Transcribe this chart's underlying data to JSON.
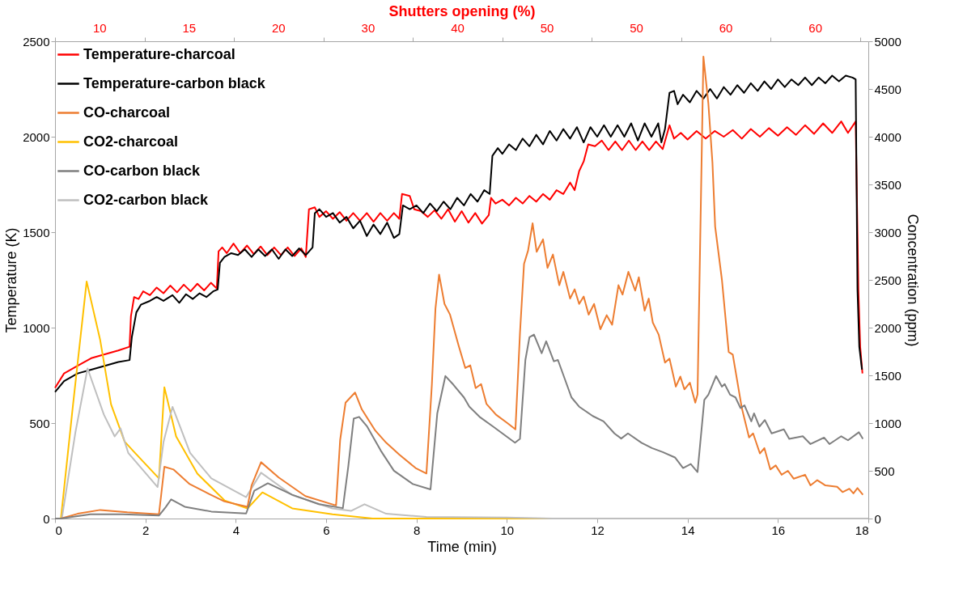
{
  "chart_data": {
    "type": "line",
    "xlabel": "Time (min)",
    "ylabel": "Temperature (K)",
    "y2label": "Concentration (ppm)",
    "x2label": "Shutters opening (%)",
    "xlim": [
      0,
      18
    ],
    "xticks": [
      0,
      2,
      4,
      6,
      8,
      10,
      12,
      14,
      16,
      18
    ],
    "ylim": [
      0,
      2500
    ],
    "yticks": [
      0,
      500,
      1000,
      1500,
      2000,
      2500
    ],
    "y2lim": [
      0,
      5000
    ],
    "y2ticks": [
      0,
      500,
      1000,
      1500,
      2000,
      2500,
      3000,
      3500,
      4000,
      4500,
      5000
    ],
    "annotations": [
      "10",
      "15",
      "20",
      "30",
      "40",
      "50",
      "50",
      "60",
      "60"
    ],
    "legend": "top left",
    "line_style": "solid",
    "series": [
      {
        "name": "Temperature-charcoal",
        "color": "#ff0000",
        "x": [
          0,
          0.2,
          0.5,
          0.8,
          1.1,
          1.4,
          1.65,
          1.68,
          1.75,
          1.85,
          1.95,
          2.1,
          2.25,
          2.4,
          2.55,
          2.7,
          2.85,
          3.0,
          3.15,
          3.3,
          3.45,
          3.58,
          3.62,
          3.7,
          3.8,
          3.95,
          4.1,
          4.25,
          4.4,
          4.55,
          4.7,
          4.85,
          5.0,
          5.15,
          5.3,
          5.45,
          5.55,
          5.62,
          5.75,
          5.85,
          6.0,
          6.15,
          6.3,
          6.45,
          6.6,
          6.75,
          6.9,
          7.05,
          7.2,
          7.35,
          7.5,
          7.62,
          7.68,
          7.85,
          7.95,
          8.1,
          8.25,
          8.4,
          8.55,
          8.7,
          8.85,
          9.0,
          9.15,
          9.3,
          9.45,
          9.6,
          9.65,
          9.75,
          9.9,
          10.05,
          10.2,
          10.35,
          10.5,
          10.65,
          10.8,
          10.95,
          11.1,
          11.25,
          11.4,
          11.5,
          11.6,
          11.7,
          11.8,
          11.95,
          12.1,
          12.25,
          12.4,
          12.55,
          12.7,
          12.85,
          13.0,
          13.15,
          13.3,
          13.45,
          13.6,
          13.7,
          13.85,
          14.0,
          14.2,
          14.4,
          14.6,
          14.8,
          15.0,
          15.2,
          15.4,
          15.6,
          15.8,
          16.0,
          16.2,
          16.4,
          16.6,
          16.8,
          17.0,
          17.2,
          17.4,
          17.55,
          17.72,
          17.78,
          17.82,
          17.87
        ],
        "values": [
          684,
          760,
          800,
          840,
          860,
          880,
          900,
          1060,
          1160,
          1150,
          1190,
          1170,
          1210,
          1180,
          1220,
          1185,
          1225,
          1190,
          1230,
          1195,
          1235,
          1205,
          1400,
          1420,
          1390,
          1440,
          1390,
          1430,
          1385,
          1425,
          1380,
          1420,
          1380,
          1420,
          1375,
          1415,
          1370,
          1620,
          1630,
          1580,
          1610,
          1570,
          1605,
          1560,
          1600,
          1560,
          1600,
          1555,
          1600,
          1560,
          1600,
          1570,
          1700,
          1690,
          1620,
          1610,
          1580,
          1615,
          1570,
          1620,
          1555,
          1610,
          1550,
          1600,
          1545,
          1590,
          1680,
          1650,
          1670,
          1640,
          1680,
          1650,
          1690,
          1660,
          1700,
          1670,
          1720,
          1700,
          1760,
          1720,
          1820,
          1870,
          1960,
          1950,
          1980,
          1930,
          1975,
          1930,
          1980,
          1930,
          1975,
          1930,
          1975,
          1935,
          2060,
          1990,
          2020,
          1985,
          2030,
          1990,
          2030,
          2000,
          2035,
          1990,
          2040,
          2000,
          2045,
          2005,
          2050,
          2010,
          2060,
          2015,
          2070,
          2020,
          2080,
          2020,
          2080,
          1200,
          900,
          760
        ]
      },
      {
        "name": "Temperature-carbon black",
        "color": "#000000",
        "x": [
          0,
          0.2,
          0.5,
          0.8,
          1.1,
          1.4,
          1.65,
          1.7,
          1.8,
          1.9,
          2.1,
          2.25,
          2.4,
          2.6,
          2.75,
          2.9,
          3.05,
          3.2,
          3.35,
          3.5,
          3.6,
          3.65,
          3.75,
          3.9,
          4.05,
          4.2,
          4.35,
          4.5,
          4.65,
          4.8,
          4.95,
          5.1,
          5.25,
          5.4,
          5.55,
          5.7,
          5.75,
          5.85,
          6.0,
          6.15,
          6.3,
          6.45,
          6.6,
          6.75,
          6.9,
          7.05,
          7.2,
          7.35,
          7.5,
          7.62,
          7.7,
          7.85,
          8.0,
          8.15,
          8.3,
          8.45,
          8.6,
          8.75,
          8.9,
          9.05,
          9.2,
          9.35,
          9.5,
          9.62,
          9.68,
          9.8,
          9.9,
          10.05,
          10.2,
          10.35,
          10.5,
          10.65,
          10.8,
          10.95,
          11.1,
          11.25,
          11.4,
          11.55,
          11.7,
          11.85,
          12.0,
          12.15,
          12.3,
          12.45,
          12.6,
          12.75,
          12.9,
          13.05,
          13.2,
          13.35,
          13.42,
          13.5,
          13.6,
          13.7,
          13.78,
          13.9,
          14.05,
          14.2,
          14.35,
          14.5,
          14.65,
          14.8,
          14.95,
          15.1,
          15.25,
          15.4,
          15.55,
          15.7,
          15.85,
          16.0,
          16.15,
          16.3,
          16.45,
          16.6,
          16.75,
          16.9,
          17.05,
          17.2,
          17.35,
          17.5,
          17.65,
          17.72,
          17.76,
          17.8,
          17.86
        ],
        "values": [
          663,
          720,
          760,
          780,
          800,
          820,
          830,
          950,
          1080,
          1120,
          1140,
          1160,
          1140,
          1170,
          1130,
          1175,
          1150,
          1180,
          1160,
          1190,
          1200,
          1340,
          1370,
          1390,
          1380,
          1410,
          1370,
          1410,
          1375,
          1410,
          1360,
          1410,
          1375,
          1415,
          1380,
          1420,
          1600,
          1620,
          1580,
          1600,
          1550,
          1580,
          1520,
          1560,
          1480,
          1540,
          1490,
          1550,
          1470,
          1490,
          1640,
          1620,
          1640,
          1600,
          1650,
          1610,
          1660,
          1620,
          1680,
          1640,
          1700,
          1660,
          1720,
          1700,
          1900,
          1940,
          1910,
          1960,
          1930,
          1990,
          1950,
          2010,
          1960,
          2030,
          1980,
          2040,
          1990,
          2050,
          1970,
          2050,
          2000,
          2060,
          2000,
          2060,
          2000,
          2070,
          1980,
          2070,
          2000,
          2070,
          1970,
          2040,
          2230,
          2240,
          2170,
          2220,
          2180,
          2240,
          2200,
          2250,
          2200,
          2260,
          2220,
          2270,
          2230,
          2280,
          2240,
          2290,
          2250,
          2300,
          2260,
          2300,
          2270,
          2310,
          2270,
          2310,
          2280,
          2320,
          2290,
          2320,
          2310,
          2300,
          1200,
          900,
          780
        ]
      },
      {
        "name": "CO-charcoal",
        "color": "#ed7d31",
        "axis": "y2",
        "x": [
          0,
          0.13,
          0.5,
          1.0,
          1.6,
          2.3,
          2.35,
          2.42,
          2.62,
          2.98,
          3.4,
          3.75,
          4.26,
          4.35,
          4.56,
          4.95,
          5.54,
          6.22,
          6.31,
          6.43,
          6.64,
          6.79,
          7.09,
          7.33,
          7.62,
          7.98,
          8.22,
          8.34,
          8.42,
          8.5,
          8.62,
          8.74,
          8.93,
          9.08,
          9.19,
          9.31,
          9.43,
          9.55,
          9.76,
          10.0,
          10.19,
          10.29,
          10.38,
          10.47,
          10.57,
          10.66,
          10.8,
          10.9,
          11.02,
          11.16,
          11.25,
          11.4,
          11.5,
          11.6,
          11.7,
          11.81,
          11.93,
          12.07,
          12.21,
          12.33,
          12.47,
          12.56,
          12.69,
          12.84,
          12.92,
          13.05,
          13.14,
          13.23,
          13.36,
          13.5,
          13.6,
          13.74,
          13.84,
          13.93,
          14.05,
          14.17,
          14.22,
          14.35,
          14.46,
          14.55,
          14.61,
          14.76,
          14.91,
          15.0,
          15.2,
          15.36,
          15.45,
          15.6,
          15.7,
          15.83,
          15.95,
          16.08,
          16.22,
          16.35,
          16.6,
          16.72,
          16.87,
          17.05,
          17.31,
          17.43,
          17.58,
          17.67,
          17.76,
          17.88
        ],
        "values": [
          0,
          0,
          50,
          90,
          65,
          45,
          250,
          543,
          514,
          361,
          260,
          179,
          123,
          347,
          590,
          430,
          235,
          137,
          822,
          1214,
          1320,
          1144,
          920,
          794,
          669,
          529,
          472,
          1400,
          2200,
          2556,
          2248,
          2139,
          1815,
          1577,
          1605,
          1367,
          1409,
          1200,
          1088,
          1004,
          934,
          1941,
          2668,
          2808,
          3093,
          2794,
          2925,
          2626,
          2766,
          2444,
          2584,
          2304,
          2402,
          2248,
          2326,
          2136,
          2248,
          1983,
          2130,
          2030,
          2444,
          2346,
          2584,
          2388,
          2528,
          2178,
          2304,
          2053,
          1927,
          1633,
          1675,
          1382,
          1487,
          1353,
          1423,
          1214,
          1300,
          4840,
          4346,
          3730,
          3059,
          2500,
          1745,
          1717,
          1158,
          850,
          892,
          682,
          738,
          514,
          556,
          459,
          500,
          417,
          459,
          347,
          402,
          347,
          333,
          277,
          312,
          263,
          319,
          249
        ]
      },
      {
        "name": "CO2-charcoal",
        "color": "#ffc000",
        "x": [
          0,
          0.13,
          0.4,
          0.7,
          1.0,
          1.24,
          1.54,
          1.77,
          2.3,
          2.42,
          2.68,
          3.15,
          3.75,
          4.26,
          4.59,
          5.25,
          6.14,
          7.03,
          10,
          14,
          18
        ],
        "values": [
          0,
          0,
          600,
          1242,
          934,
          598,
          403,
          344,
          210,
          688,
          430,
          235,
          95,
          53,
          137,
          53,
          22,
          0,
          0,
          0,
          0
        ]
      },
      {
        "name": "CO-carbon black",
        "color": "#7f7f7f",
        "axis": "y2",
        "x": [
          0,
          0.13,
          0.78,
          1.5,
          2.3,
          2.45,
          2.57,
          2.87,
          3.46,
          4.23,
          4.41,
          4.71,
          5.25,
          5.84,
          6.37,
          6.49,
          6.61,
          6.73,
          6.91,
          7.21,
          7.5,
          7.92,
          8.31,
          8.46,
          8.64,
          8.82,
          9.05,
          9.17,
          9.41,
          9.7,
          10.18,
          10.29,
          10.41,
          10.5,
          10.6,
          10.77,
          10.87,
          11.04,
          11.13,
          11.43,
          11.6,
          11.9,
          12.14,
          12.38,
          12.53,
          12.68,
          12.98,
          13.21,
          13.45,
          13.72,
          13.9,
          14.07,
          14.22,
          14.37,
          14.46,
          14.63,
          14.76,
          14.82,
          14.94,
          15.06,
          15.17,
          15.26,
          15.41,
          15.47,
          15.59,
          15.71,
          15.86,
          16.13,
          16.25,
          16.55,
          16.72,
          17.02,
          17.14,
          17.4,
          17.55,
          17.79,
          17.88
        ],
        "values": [
          0,
          0,
          45,
          45,
          31,
          120,
          201,
          123,
          73,
          53,
          291,
          369,
          249,
          151,
          109,
          543,
          1046,
          1065,
          962,
          711,
          501,
          361,
          305,
          1101,
          1493,
          1400,
          1269,
          1172,
          1060,
          962,
          794,
          835,
          1661,
          1899,
          1927,
          1731,
          1857,
          1647,
          1661,
          1269,
          1172,
          1074,
          1018,
          892,
          838,
          892,
          794,
          738,
          696,
          640,
          529,
          571,
          487,
          1242,
          1298,
          1493,
          1382,
          1409,
          1298,
          1269,
          1158,
          1186,
          1018,
          1102,
          962,
          1032,
          892,
          934,
          835,
          862,
          780,
          848,
          780,
          862,
          820,
          904,
          835
        ]
      },
      {
        "name": "CO2-carbon black",
        "color": "#bfbfbf",
        "x": [
          0,
          0.15,
          0.45,
          0.72,
          1.08,
          1.32,
          1.45,
          1.62,
          2.27,
          2.4,
          2.6,
          2.99,
          3.46,
          4.23,
          4.56,
          5.25,
          6.14,
          6.55,
          6.85,
          7.33,
          8.22,
          10,
          11,
          18
        ],
        "values": [
          0,
          0,
          450,
          786,
          545,
          430,
          472,
          344,
          165,
          400,
          585,
          344,
          210,
          112,
          240,
          123,
          53,
          40,
          75,
          25,
          8,
          5,
          0,
          0
        ]
      }
    ]
  }
}
